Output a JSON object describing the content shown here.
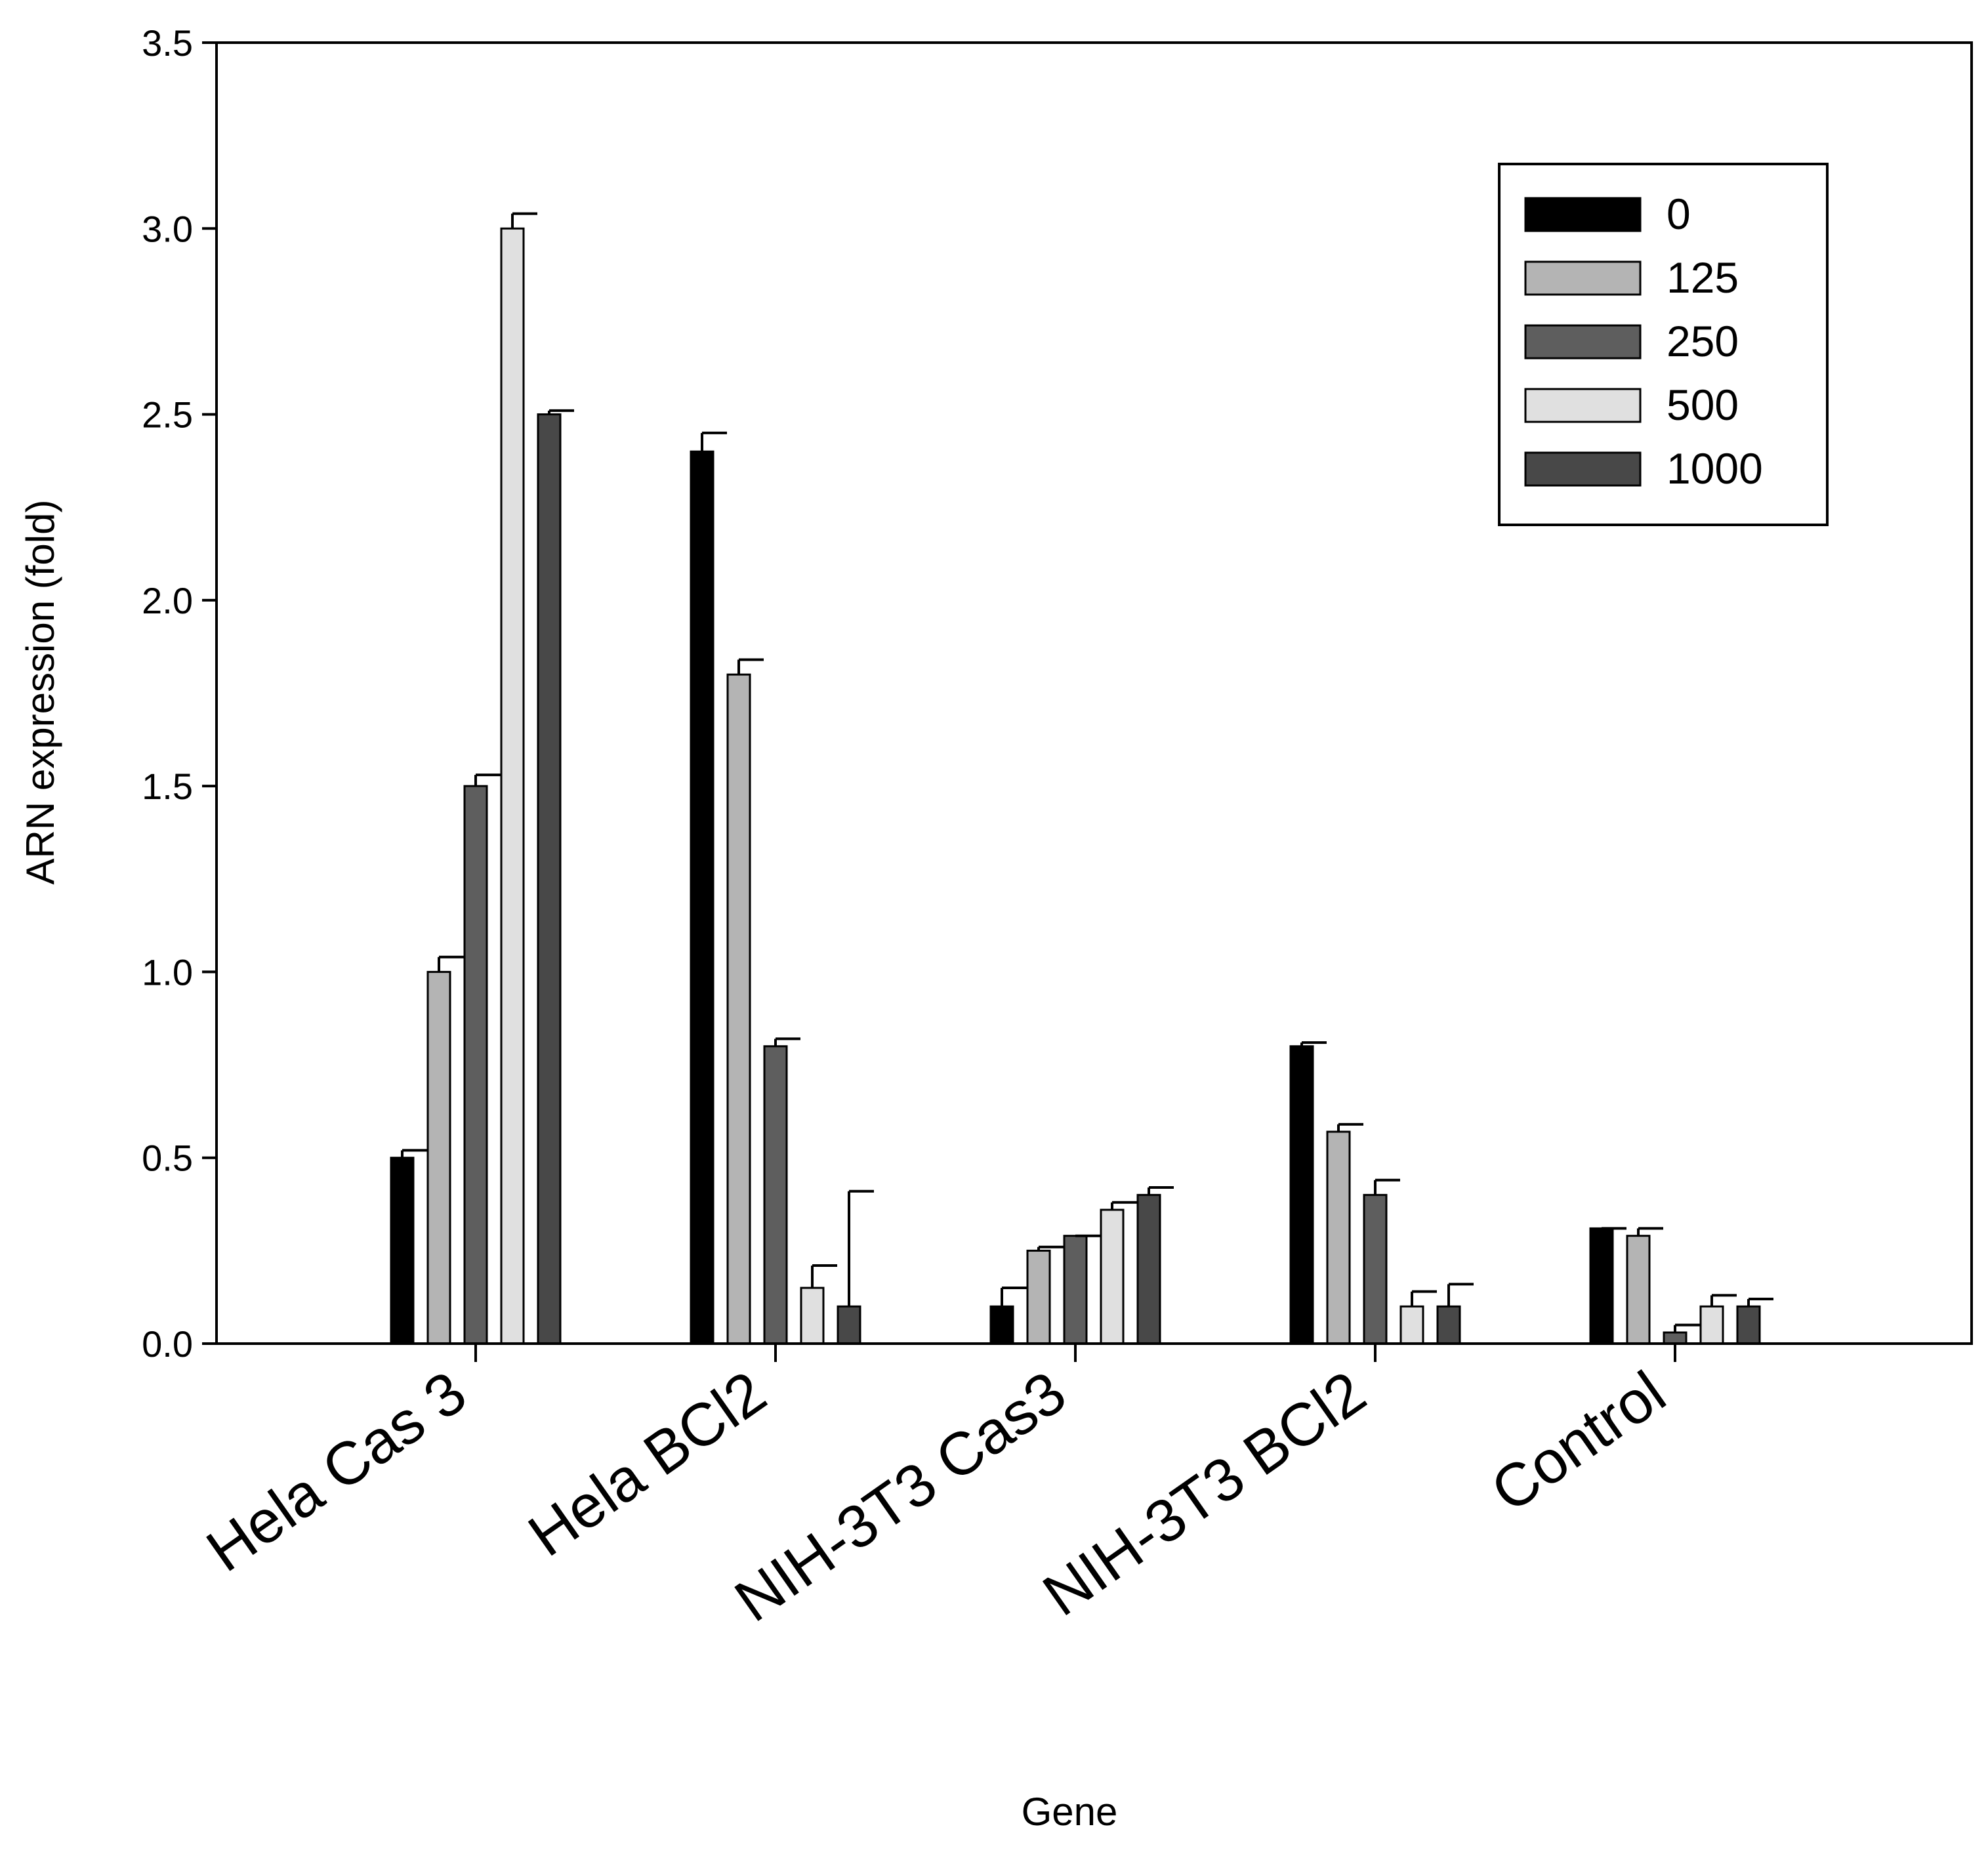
{
  "chart_data": {
    "type": "bar",
    "title": "",
    "xlabel": "Gene",
    "ylabel": "ARN expression (fold)",
    "ylim": [
      0,
      3.5
    ],
    "yticks": [
      "0.0",
      "0.5",
      "1.0",
      "1.5",
      "2.0",
      "2.5",
      "3.0",
      "3.5"
    ],
    "grid": false,
    "legend_position": "top-right",
    "categories": [
      "Hela Cas 3",
      "Hela BCl2",
      "NIH-3T3 Cas3",
      "NIH-3T3 BCl2",
      "Control"
    ],
    "series": [
      {
        "name": "0",
        "color": "#000000",
        "values": [
          0.5,
          2.4,
          0.1,
          0.8,
          0.31
        ],
        "errors": [
          0.02,
          0.05,
          0.05,
          0.01,
          0.0
        ]
      },
      {
        "name": "125",
        "color": "#b4b4b4",
        "values": [
          1.0,
          1.8,
          0.25,
          0.57,
          0.29
        ],
        "errors": [
          0.04,
          0.04,
          0.01,
          0.02,
          0.02
        ]
      },
      {
        "name": "250",
        "color": "#5e5e5e",
        "values": [
          1.5,
          0.8,
          0.29,
          0.4,
          0.03
        ],
        "errors": [
          0.03,
          0.02,
          0.0,
          0.04,
          0.02
        ]
      },
      {
        "name": "500",
        "color": "#e0e0e0",
        "values": [
          3.0,
          0.15,
          0.36,
          0.1,
          0.1
        ],
        "errors": [
          0.04,
          0.06,
          0.02,
          0.04,
          0.03
        ]
      },
      {
        "name": "1000",
        "color": "#484848",
        "values": [
          2.5,
          0.1,
          0.4,
          0.1,
          0.1
        ],
        "errors": [
          0.01,
          0.31,
          0.02,
          0.06,
          0.02
        ]
      }
    ]
  }
}
